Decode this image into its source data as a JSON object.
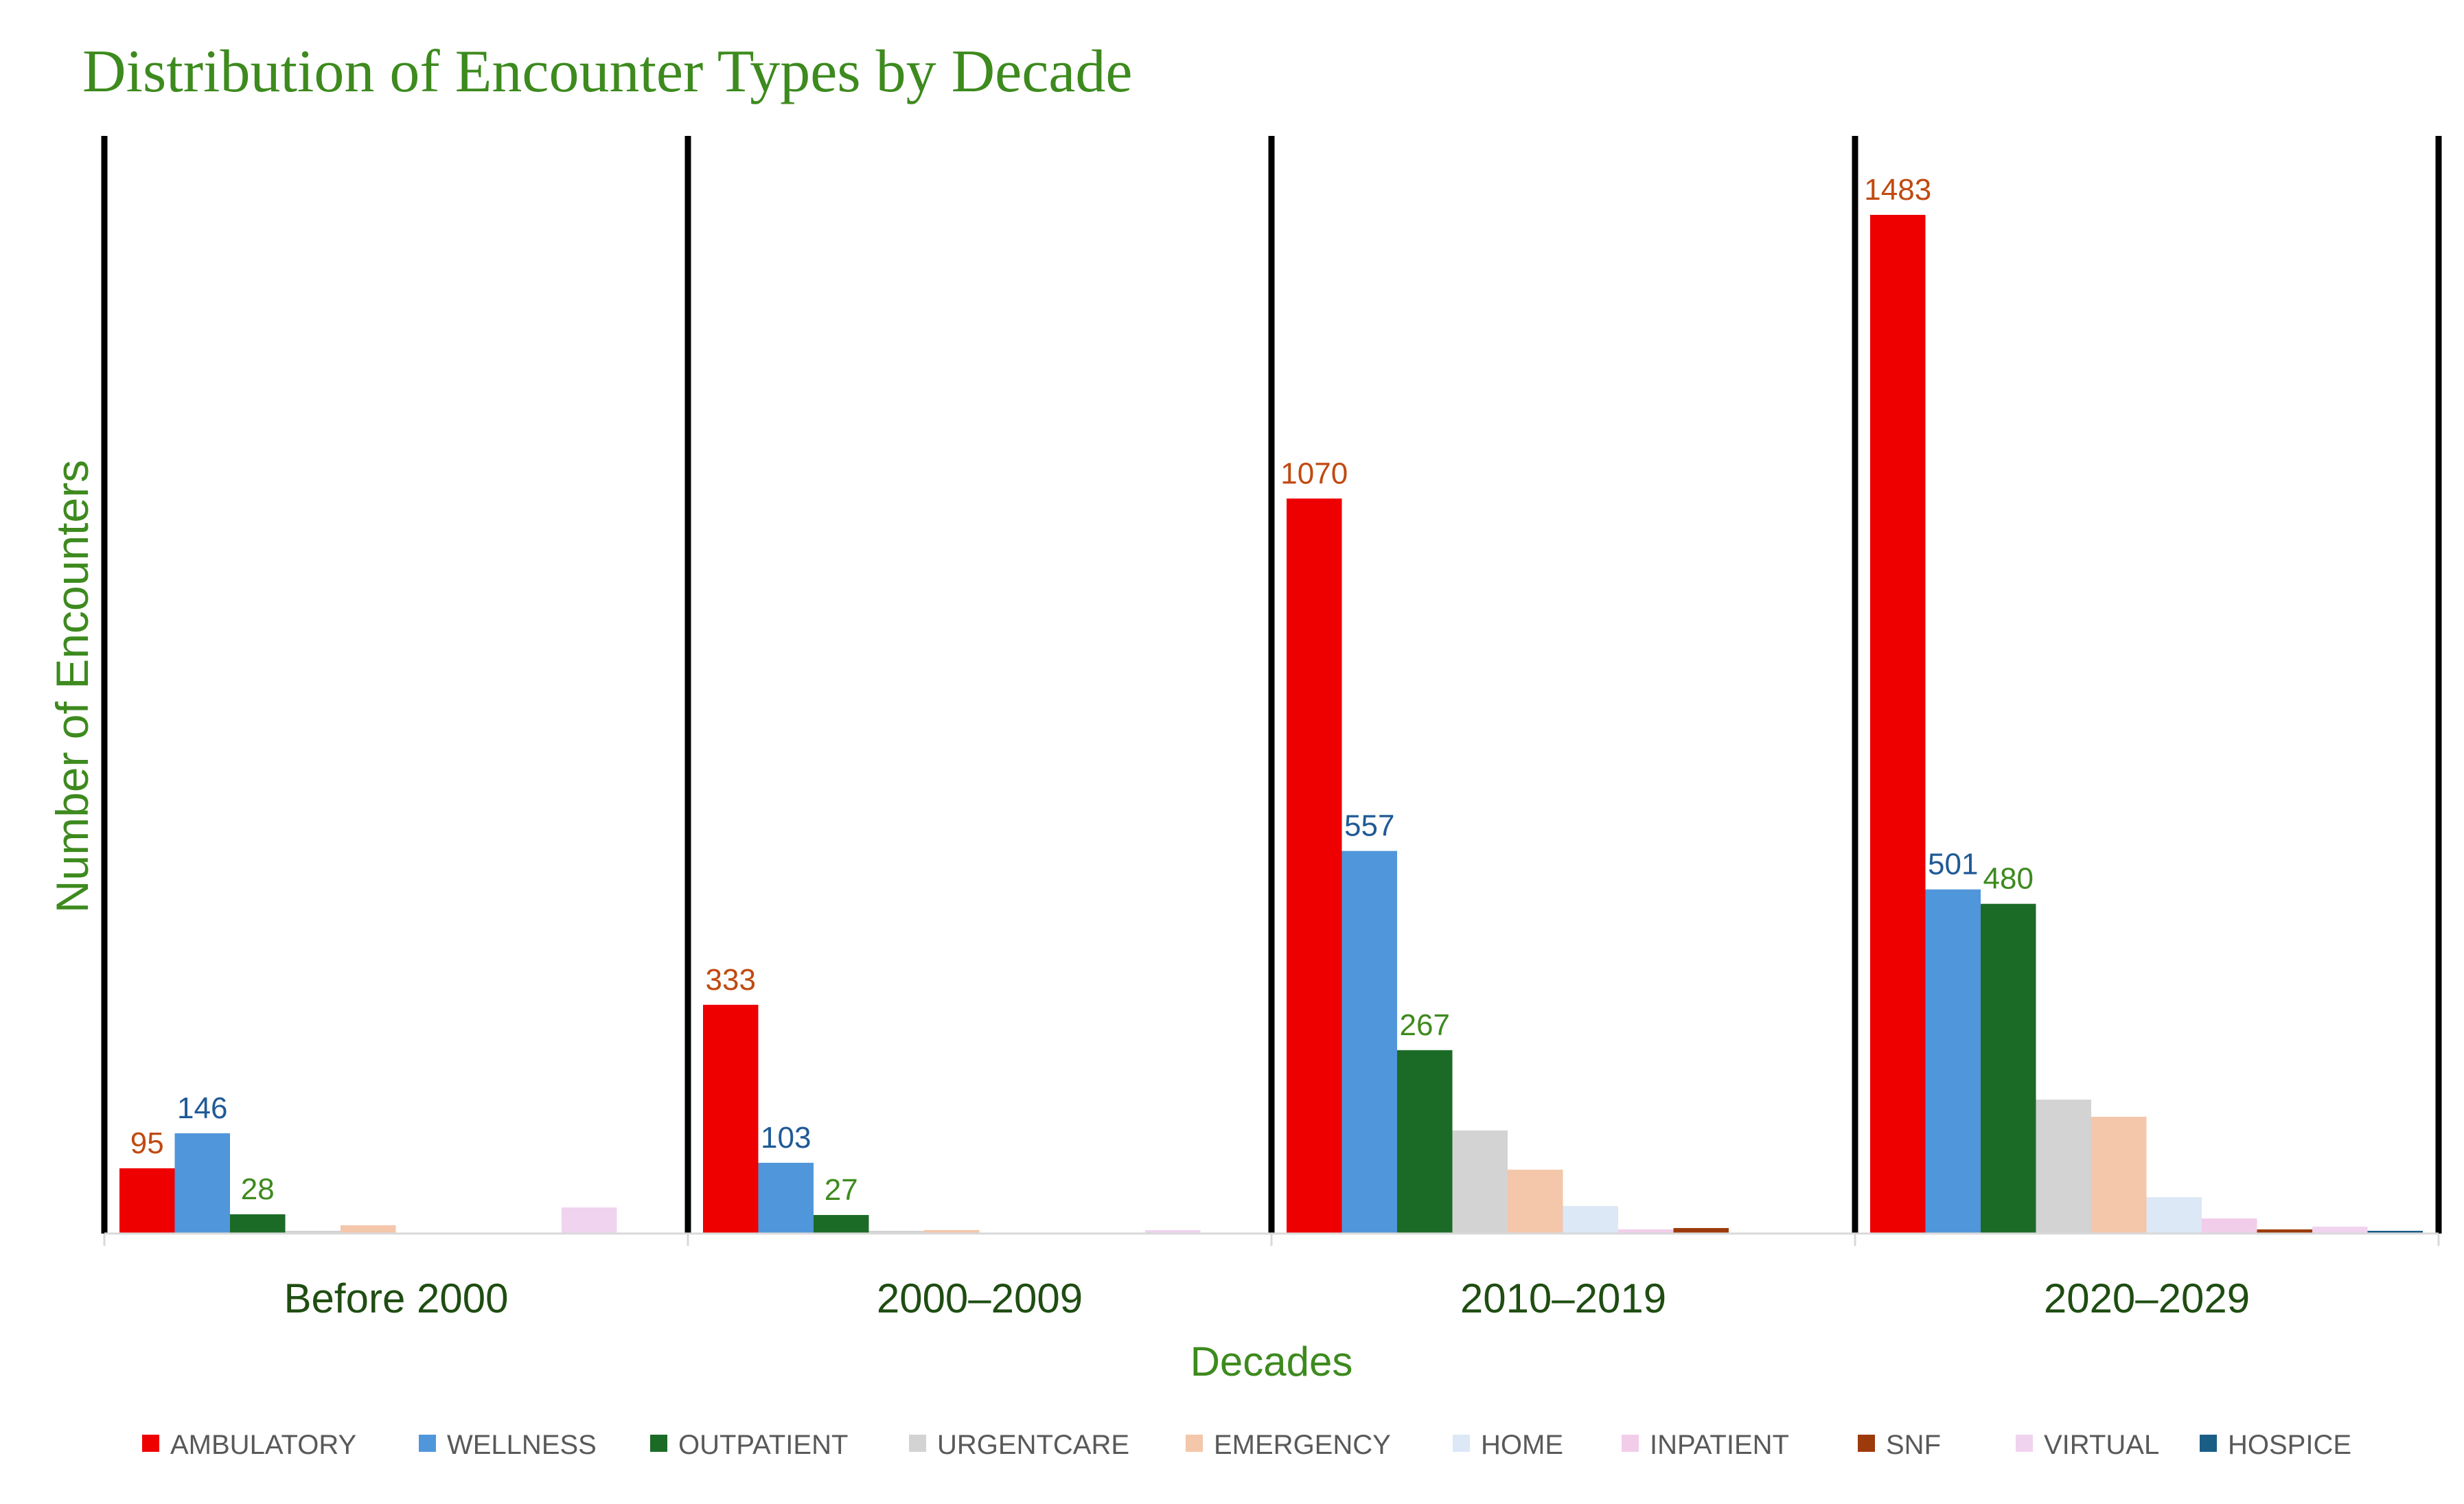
{
  "chart_data": {
    "type": "bar",
    "title": "Distribution of Encounter Types by Decade",
    "xlabel": "Decades",
    "ylabel": "Number of Encounters",
    "categories": [
      "Before 2000",
      "2000–2009",
      "2010–2019",
      "2020–2029"
    ],
    "series": [
      {
        "name": "AMBULATORY",
        "color": "#ee0000",
        "values": [
          95,
          333,
          1070,
          1483
        ],
        "labels": [
          "95",
          "333",
          "1070",
          "1483"
        ],
        "label_color": "#c04a12"
      },
      {
        "name": "WELLNESS",
        "color": "#5096da",
        "values": [
          146,
          103,
          557,
          501
        ],
        "labels": [
          "146",
          "103",
          "557",
          "501"
        ],
        "label_color": "#1f5a96"
      },
      {
        "name": "OUTPATIENT",
        "color": "#1b6b26",
        "values": [
          28,
          27,
          267,
          480
        ],
        "labels": [
          "28",
          "27",
          "267",
          "480"
        ],
        "label_color": "#3d8a1e"
      },
      {
        "name": "URGENTCARE",
        "color": "#d3d3d3",
        "values": [
          2,
          2,
          150,
          195
        ],
        "labels": [],
        "label_color": "#595959"
      },
      {
        "name": "EMERGENCY",
        "color": "#f4c6aa",
        "values": [
          12,
          5,
          93,
          170
        ],
        "labels": [],
        "label_color": "#595959"
      },
      {
        "name": "HOME",
        "color": "#dce8f6",
        "values": [
          0,
          0,
          40,
          53
        ],
        "labels": [],
        "label_color": "#595959"
      },
      {
        "name": "INPATIENT",
        "color": "#f2cdea",
        "values": [
          0,
          0,
          6,
          22
        ],
        "labels": [],
        "label_color": "#595959"
      },
      {
        "name": "SNF",
        "color": "#9c3a0c",
        "values": [
          0,
          0,
          8,
          6
        ],
        "labels": [],
        "label_color": "#595959"
      },
      {
        "name": "VIRTUAL",
        "color": "#f0d3ef",
        "values": [
          38,
          5,
          0,
          10
        ],
        "labels": [],
        "label_color": "#595959"
      },
      {
        "name": "HOSPICE",
        "color": "#1a5e86",
        "values": [
          0,
          0,
          0,
          3
        ],
        "labels": [],
        "label_color": "#595959"
      }
    ],
    "ylim": [
      0,
      1483
    ],
    "grid": false,
    "legend_position": "bottom"
  }
}
